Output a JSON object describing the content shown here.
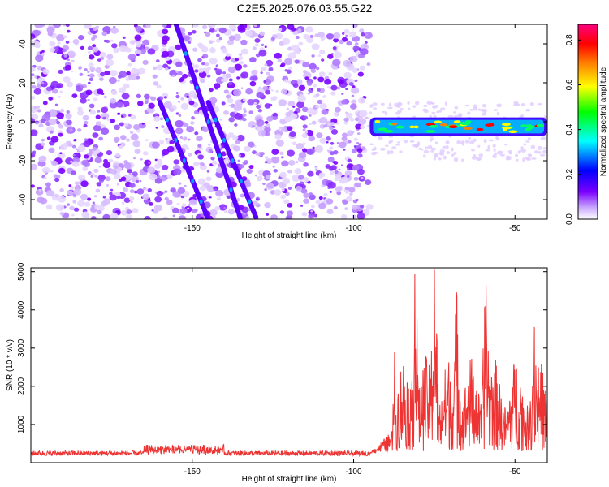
{
  "title": "C2E5.2025.076.03.55.G22",
  "chart_data": [
    {
      "type": "heatmap",
      "xlabel": "Height of straight line (km)",
      "ylabel": "Frequency (Hz)",
      "xlim": [
        -200,
        -40
      ],
      "ylim": [
        -50,
        50
      ],
      "xticks": [
        -150,
        -100,
        -50
      ],
      "yticks": [
        -40,
        -20,
        0,
        20,
        40
      ],
      "colorbar": {
        "label": "Normalized spectral amplitude",
        "range": [
          0,
          0.87
        ],
        "ticks": [
          "0.0",
          "0.2",
          "0.4",
          "0.6",
          "0.8"
        ],
        "colors": [
          "#ffffff",
          "#c9a6ff",
          "#7a00ff",
          "#0000ff",
          "#00ffff",
          "#00ff00",
          "#ffff00",
          "#ff8000",
          "#ff0000",
          "#ff0080"
        ]
      },
      "features": [
        {
          "kind": "diagonal-streak",
          "x_start": -155,
          "y_start": 50,
          "x_end": -135,
          "y_end": -50
        },
        {
          "kind": "diagonal-streak",
          "x_start": -160,
          "y_start": 10,
          "x_end": -145,
          "y_end": -50
        },
        {
          "kind": "diagonal-streak",
          "x_start": -145,
          "y_start": 10,
          "x_end": -130,
          "y_end": -50
        },
        {
          "kind": "signal-band",
          "x_start": -95,
          "x_end": -40,
          "y_start": -6,
          "y_end": 1
        }
      ]
    },
    {
      "type": "line",
      "xlabel": "Height of straight line (km)",
      "ylabel": "SNR (10 * v/v)",
      "xlim": [
        -200,
        -40
      ],
      "ylim": [
        0,
        5100
      ],
      "xticks": [
        -150,
        -100,
        -50
      ],
      "yticks": [
        1000,
        2000,
        3000,
        4000,
        5000
      ],
      "color": "#ee3333",
      "peaks": [
        {
          "x": -88,
          "y": 3650
        },
        {
          "x": -81,
          "y": 4950
        },
        {
          "x": -75,
          "y": 5050
        },
        {
          "x": -68,
          "y": 4350
        },
        {
          "x": -59,
          "y": 4650
        },
        {
          "x": -44,
          "y": 3550
        }
      ]
    }
  ]
}
